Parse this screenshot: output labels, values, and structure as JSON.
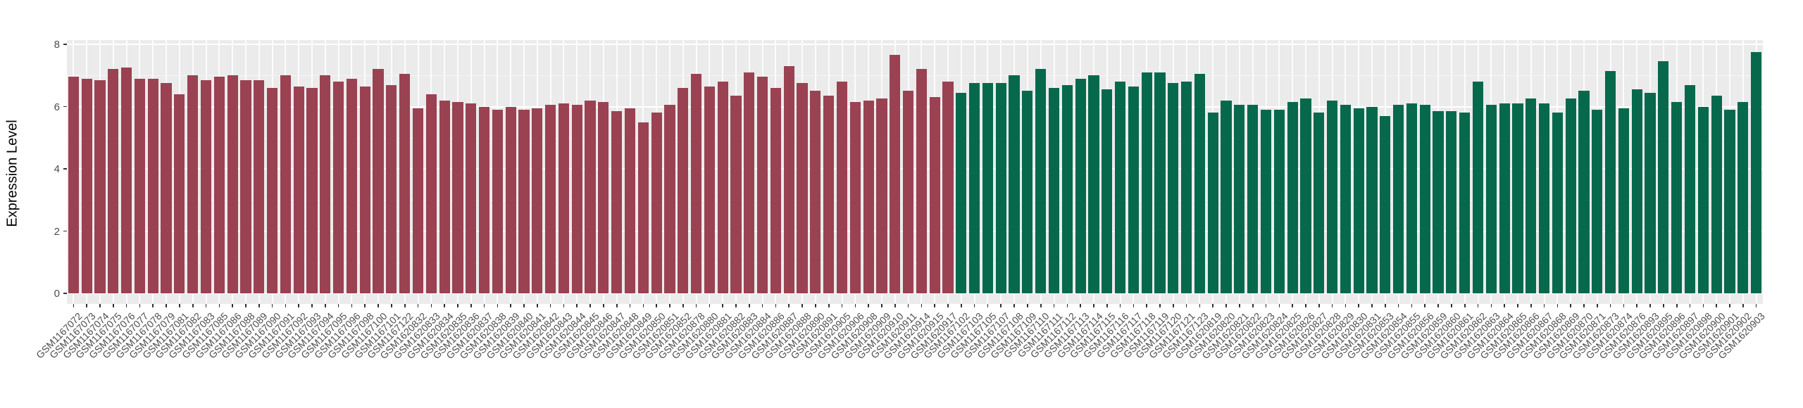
{
  "chart_data": {
    "type": "bar",
    "title": "",
    "xlabel": "",
    "ylabel": "Expression Level",
    "ylim": [
      0,
      8
    ],
    "yticks": [
      0,
      2,
      4,
      6,
      8
    ],
    "yticks_minor": [
      1,
      3,
      5,
      7
    ],
    "grid": "on",
    "legend_position": "none",
    "panel_background": "#EBEBEB",
    "gridline_color": "#FFFFFF",
    "axis_text_color": "#4D4D4D",
    "series": [
      {
        "name": "series-1",
        "color": "#9A4252",
        "categories": [
          "GSM1167072",
          "GSM1167073",
          "GSM1167074",
          "GSM1167075",
          "GSM1167076",
          "GSM1167077",
          "GSM1167078",
          "GSM1167079",
          "GSM1167081",
          "GSM1167082",
          "GSM1167083",
          "GSM1167085",
          "GSM1167086",
          "GSM1167088",
          "GSM1167089",
          "GSM1167090",
          "GSM1167091",
          "GSM1167092",
          "GSM1167093",
          "GSM1167094",
          "GSM1167095",
          "GSM1167096",
          "GSM1167098",
          "GSM1167100",
          "GSM1167101",
          "GSM1167122",
          "GSM1620832",
          "GSM1620833",
          "GSM1620834",
          "GSM1620835",
          "GSM1620836",
          "GSM1620837",
          "GSM1620838",
          "GSM1620839",
          "GSM1620840",
          "GSM1620841",
          "GSM1620842",
          "GSM1620843",
          "GSM1620844",
          "GSM1620845",
          "GSM1620846",
          "GSM1620847",
          "GSM1620848",
          "GSM1620849",
          "GSM1620850",
          "GSM1620851",
          "GSM1620852",
          "GSM1620878",
          "GSM1620880",
          "GSM1620881",
          "GSM1620882",
          "GSM1620883",
          "GSM1620884",
          "GSM1620886",
          "GSM1620887",
          "GSM1620888",
          "GSM1620890",
          "GSM1620891",
          "GSM1620905",
          "GSM1620906",
          "GSM1620908",
          "GSM1620909",
          "GSM1620910",
          "GSM1620911",
          "GSM1620914",
          "GSM1620915",
          "GSM1620917"
        ],
        "values": [
          6.95,
          6.9,
          6.85,
          7.2,
          7.25,
          6.9,
          6.9,
          6.75,
          6.4,
          7.0,
          6.85,
          6.95,
          7.0,
          6.85,
          6.85,
          6.6,
          7.0,
          6.65,
          6.6,
          7.0,
          6.8,
          6.9,
          6.65,
          7.2,
          6.7,
          7.05,
          5.95,
          6.4,
          6.2,
          6.15,
          6.1,
          6.0,
          5.9,
          6.0,
          5.9,
          5.95,
          6.05,
          6.1,
          6.05,
          6.2,
          6.15,
          5.85,
          5.95,
          5.5,
          5.8,
          6.05,
          6.6,
          7.05,
          6.65,
          6.8,
          6.35,
          7.1,
          6.95,
          6.6,
          7.3,
          6.75,
          6.5,
          6.35,
          6.8,
          6.15,
          6.2,
          6.25,
          7.65,
          6.5,
          7.2,
          6.3,
          6.8
        ]
      },
      {
        "name": "series-2",
        "color": "#06694C",
        "categories": [
          "GSM1167102",
          "GSM1167103",
          "GSM1167105",
          "GSM1167107",
          "GSM1167108",
          "GSM1167109",
          "GSM1167110",
          "GSM1167111",
          "GSM1167112",
          "GSM1167113",
          "GSM1167114",
          "GSM1167115",
          "GSM1167116",
          "GSM1167117",
          "GSM1167118",
          "GSM1167119",
          "GSM1167120",
          "GSM1167121",
          "GSM1167123",
          "GSM1620819",
          "GSM1620820",
          "GSM1620821",
          "GSM1620822",
          "GSM1620823",
          "GSM1620824",
          "GSM1620825",
          "GSM1620826",
          "GSM1620827",
          "GSM1620828",
          "GSM1620829",
          "GSM1620830",
          "GSM1620831",
          "GSM1620853",
          "GSM1620854",
          "GSM1620855",
          "GSM1620856",
          "GSM1620859",
          "GSM1620860",
          "GSM1620861",
          "GSM1620862",
          "GSM1620863",
          "GSM1620864",
          "GSM1620865",
          "GSM1620866",
          "GSM1620867",
          "GSM1620868",
          "GSM1620869",
          "GSM1620870",
          "GSM1620871",
          "GSM1620873",
          "GSM1620874",
          "GSM1620876",
          "GSM1620893",
          "GSM1620895",
          "GSM1620896",
          "GSM1620897",
          "GSM1620898",
          "GSM1620900",
          "GSM1620901",
          "GSM1620902",
          "GSM1620903"
        ],
        "values": [
          6.45,
          6.75,
          6.75,
          6.75,
          7.0,
          6.5,
          7.2,
          6.6,
          6.7,
          6.9,
          7.0,
          6.55,
          6.8,
          6.65,
          7.1,
          7.1,
          6.75,
          6.8,
          7.05,
          5.8,
          6.2,
          6.05,
          6.05,
          5.9,
          5.9,
          6.15,
          6.25,
          5.8,
          6.2,
          6.05,
          5.95,
          6.0,
          5.7,
          6.05,
          6.1,
          6.05,
          5.85,
          5.85,
          5.8,
          6.8,
          6.05,
          6.1,
          6.1,
          6.25,
          6.1,
          5.8,
          6.25,
          6.5,
          5.9,
          7.15,
          5.95,
          6.55,
          6.45,
          7.45,
          6.15,
          6.7,
          6.0,
          6.35,
          5.9,
          6.15,
          7.75
        ]
      }
    ]
  }
}
